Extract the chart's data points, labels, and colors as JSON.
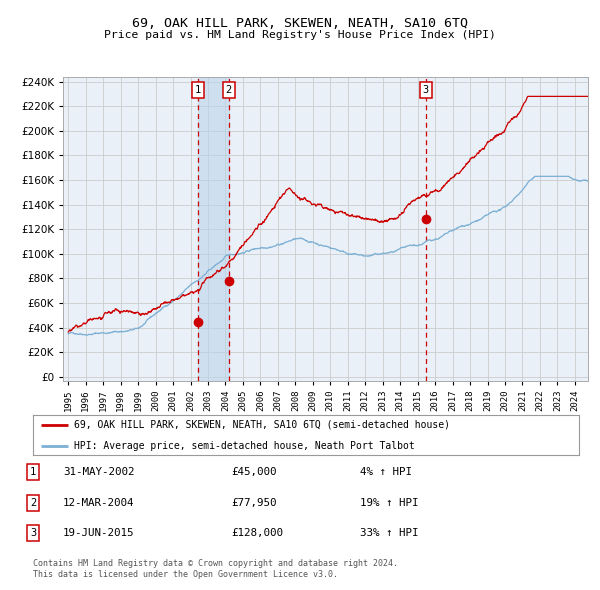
{
  "title": "69, OAK HILL PARK, SKEWEN, NEATH, SA10 6TQ",
  "subtitle": "Price paid vs. HM Land Registry's House Price Index (HPI)",
  "ylim": [
    0,
    244000
  ],
  "yticks": [
    0,
    20000,
    40000,
    60000,
    80000,
    100000,
    120000,
    140000,
    160000,
    180000,
    200000,
    220000,
    240000
  ],
  "year_start": 1995,
  "year_end": 2024,
  "sale_color": "#cc0000",
  "hpi_color": "#7bafd4",
  "sale_points": [
    {
      "date_num": 2002.42,
      "price": 45000,
      "label": "1"
    },
    {
      "date_num": 2004.19,
      "price": 77950,
      "label": "2"
    },
    {
      "date_num": 2015.46,
      "price": 128000,
      "label": "3"
    }
  ],
  "legend_line1": "69, OAK HILL PARK, SKEWEN, NEATH, SA10 6TQ (semi-detached house)",
  "legend_line2": "HPI: Average price, semi-detached house, Neath Port Talbot",
  "table_data": [
    {
      "num": "1",
      "date": "31-MAY-2002",
      "price": "£45,000",
      "change": "4% ↑ HPI"
    },
    {
      "num": "2",
      "date": "12-MAR-2004",
      "price": "£77,950",
      "change": "19% ↑ HPI"
    },
    {
      "num": "3",
      "date": "19-JUN-2015",
      "price": "£128,000",
      "change": "33% ↑ HPI"
    }
  ],
  "footer": "Contains HM Land Registry data © Crown copyright and database right 2024.\nThis data is licensed under the Open Government Licence v3.0.",
  "bg_color": "#ffffff",
  "grid_color": "#cccccc",
  "plot_bg_color": "#eaf0f8"
}
